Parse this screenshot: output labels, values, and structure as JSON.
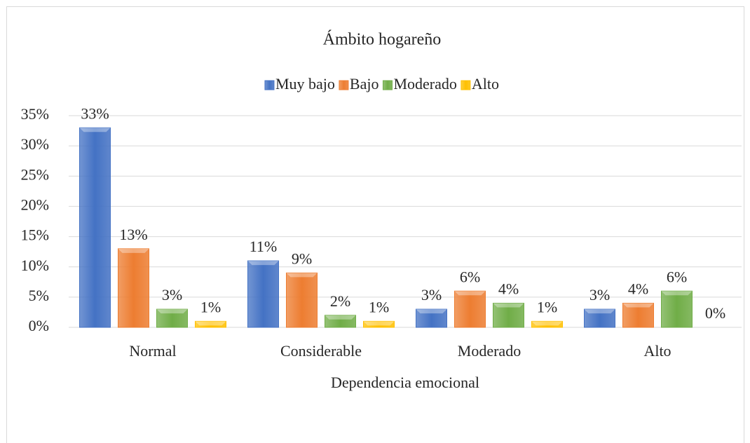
{
  "chart_data": {
    "type": "bar",
    "title": "Ámbito hogareño",
    "x_label": "Dependencia emocional",
    "categories": [
      "Normal",
      "Considerable",
      "Moderado",
      "Alto"
    ],
    "series": [
      {
        "name": "Muy bajo",
        "color": "#4472c4",
        "values": [
          33,
          11,
          3,
          3
        ],
        "value_labels": [
          "33%",
          "11%",
          "3%",
          "3%"
        ]
      },
      {
        "name": "Bajo",
        "color": "#ed7d31",
        "values": [
          13,
          9,
          6,
          4
        ],
        "value_labels": [
          "13%",
          "9%",
          "6%",
          "4%"
        ]
      },
      {
        "name": "Moderado",
        "color": "#70ad47",
        "values": [
          3,
          2,
          4,
          6
        ],
        "value_labels": [
          "3%",
          "2%",
          "4%",
          "6%"
        ]
      },
      {
        "name": "Alto",
        "color": "#ffc000",
        "values": [
          1,
          1,
          1,
          0
        ],
        "value_labels": [
          "1%",
          "1%",
          "1%",
          "0%"
        ]
      }
    ],
    "ylim": [
      0,
      35
    ],
    "yticks": [
      {
        "value": 0,
        "label": "0%"
      },
      {
        "value": 5,
        "label": "5%"
      },
      {
        "value": 10,
        "label": "10%"
      },
      {
        "value": 15,
        "label": "15%"
      },
      {
        "value": 20,
        "label": "20%"
      },
      {
        "value": 25,
        "label": "25%"
      },
      {
        "value": 30,
        "label": "30%"
      },
      {
        "value": 35,
        "label": "35%"
      }
    ],
    "grid": true,
    "legend": "top"
  }
}
